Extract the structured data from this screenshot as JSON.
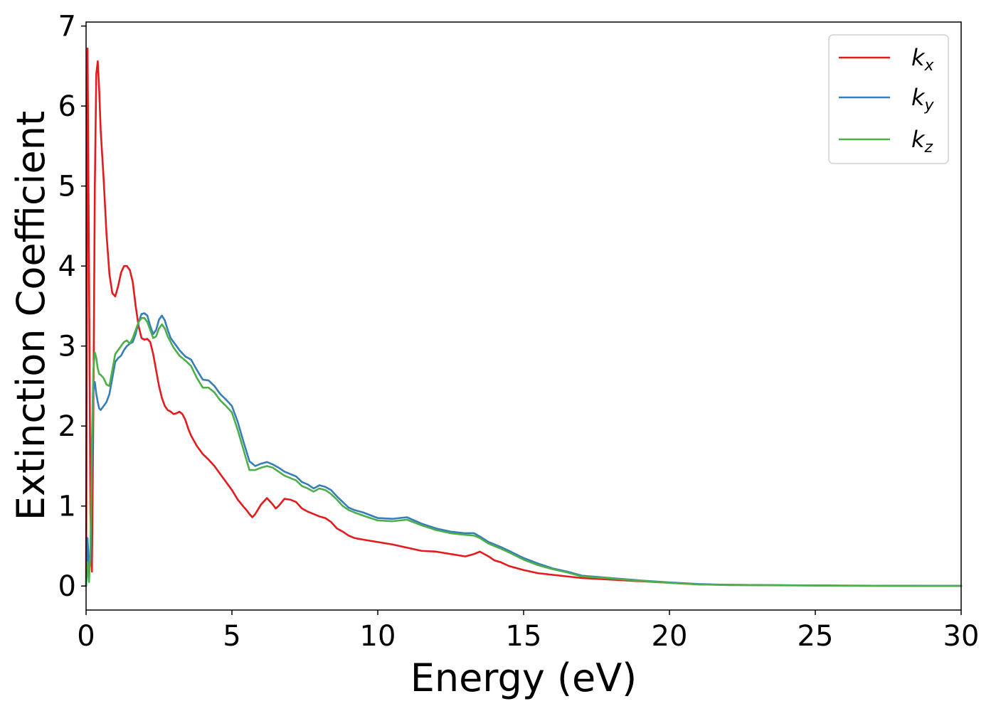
{
  "chart_data": {
    "type": "line",
    "xlabel": "Energy (eV)",
    "ylabel": "Extinction Coefficient",
    "xlim": [
      0,
      30
    ],
    "ylim": [
      -0.3,
      7.05
    ],
    "xticks": [
      0,
      5,
      10,
      15,
      20,
      25,
      30
    ],
    "yticks": [
      0,
      1,
      2,
      3,
      4,
      5,
      6,
      7
    ],
    "grid": false,
    "legend_position": "top-right",
    "series": [
      {
        "name": "k",
        "subscript": "x",
        "color": "#e41a1c",
        "x": [
          0,
          0.05,
          0.1,
          0.15,
          0.2,
          0.25,
          0.3,
          0.35,
          0.4,
          0.45,
          0.5,
          0.6,
          0.7,
          0.8,
          0.9,
          1.0,
          1.1,
          1.2,
          1.3,
          1.4,
          1.5,
          1.6,
          1.7,
          1.8,
          1.9,
          2.0,
          2.1,
          2.2,
          2.3,
          2.4,
          2.5,
          2.6,
          2.7,
          2.8,
          2.9,
          3.0,
          3.1,
          3.2,
          3.3,
          3.4,
          3.5,
          3.6,
          3.8,
          4.0,
          4.2,
          4.4,
          4.6,
          4.8,
          5.0,
          5.2,
          5.4,
          5.5,
          5.6,
          5.7,
          5.8,
          6.0,
          6.2,
          6.4,
          6.5,
          6.6,
          6.8,
          7.0,
          7.2,
          7.4,
          7.6,
          7.8,
          8.0,
          8.2,
          8.4,
          8.6,
          8.8,
          9.0,
          9.2,
          9.5,
          10.0,
          10.5,
          11.0,
          11.5,
          12.0,
          12.5,
          13.0,
          13.3,
          13.5,
          13.8,
          14.0,
          14.2,
          14.5,
          15.0,
          15.5,
          16.0,
          16.5,
          17.0,
          18.0,
          19.0,
          20.0,
          21.0,
          22.0,
          24.0,
          26.0,
          28.0,
          30.0
        ],
        "values": [
          0.0,
          6.72,
          4.0,
          0.9,
          0.18,
          2.2,
          5.0,
          6.4,
          6.56,
          6.2,
          5.7,
          5.1,
          4.4,
          3.9,
          3.66,
          3.62,
          3.75,
          3.92,
          4.0,
          4.0,
          3.95,
          3.8,
          3.5,
          3.25,
          3.1,
          3.08,
          3.09,
          3.05,
          2.9,
          2.7,
          2.5,
          2.35,
          2.25,
          2.2,
          2.18,
          2.15,
          2.16,
          2.18,
          2.15,
          2.08,
          1.97,
          1.88,
          1.75,
          1.65,
          1.58,
          1.5,
          1.4,
          1.3,
          1.2,
          1.08,
          0.99,
          0.95,
          0.9,
          0.86,
          0.9,
          1.02,
          1.1,
          1.02,
          0.97,
          1.0,
          1.09,
          1.08,
          1.05,
          0.97,
          0.93,
          0.9,
          0.87,
          0.85,
          0.8,
          0.72,
          0.68,
          0.63,
          0.6,
          0.58,
          0.55,
          0.52,
          0.48,
          0.44,
          0.43,
          0.4,
          0.37,
          0.4,
          0.43,
          0.37,
          0.32,
          0.3,
          0.25,
          0.2,
          0.16,
          0.14,
          0.12,
          0.1,
          0.08,
          0.06,
          0.04,
          0.02,
          0.015,
          0.01,
          0.005,
          0.003,
          0.002
        ]
      },
      {
        "name": "k",
        "subscript": "y",
        "color": "#377eb8",
        "x": [
          0,
          0.05,
          0.1,
          0.15,
          0.2,
          0.25,
          0.3,
          0.35,
          0.4,
          0.45,
          0.5,
          0.6,
          0.7,
          0.8,
          0.9,
          1.0,
          1.1,
          1.2,
          1.3,
          1.4,
          1.5,
          1.6,
          1.7,
          1.8,
          1.9,
          2.0,
          2.1,
          2.2,
          2.3,
          2.4,
          2.5,
          2.6,
          2.7,
          2.8,
          2.9,
          3.0,
          3.2,
          3.4,
          3.6,
          3.8,
          4.0,
          4.2,
          4.4,
          4.6,
          4.8,
          5.0,
          5.2,
          5.4,
          5.6,
          5.8,
          6.0,
          6.2,
          6.4,
          6.6,
          6.8,
          7.0,
          7.2,
          7.4,
          7.6,
          7.8,
          8.0,
          8.2,
          8.4,
          8.6,
          8.8,
          9.0,
          9.2,
          9.5,
          10.0,
          10.5,
          11.0,
          11.5,
          12.0,
          12.5,
          13.0,
          13.3,
          13.5,
          13.8,
          14.0,
          14.2,
          14.5,
          15.0,
          15.5,
          16.0,
          16.5,
          17.0,
          18.0,
          19.0,
          20.0,
          21.0,
          22.0,
          24.0,
          26.0,
          28.0,
          30.0
        ],
        "values": [
          0.0,
          0.6,
          0.2,
          0.3,
          1.5,
          2.45,
          2.55,
          2.4,
          2.3,
          2.22,
          2.2,
          2.25,
          2.3,
          2.4,
          2.6,
          2.8,
          2.85,
          2.88,
          2.95,
          3.0,
          3.03,
          3.05,
          3.15,
          3.3,
          3.4,
          3.41,
          3.38,
          3.25,
          3.15,
          3.2,
          3.33,
          3.38,
          3.32,
          3.2,
          3.1,
          3.05,
          2.95,
          2.87,
          2.83,
          2.7,
          2.58,
          2.57,
          2.5,
          2.4,
          2.33,
          2.25,
          2.05,
          1.8,
          1.56,
          1.5,
          1.53,
          1.55,
          1.52,
          1.48,
          1.43,
          1.4,
          1.37,
          1.3,
          1.27,
          1.22,
          1.26,
          1.24,
          1.2,
          1.12,
          1.05,
          0.98,
          0.95,
          0.92,
          0.85,
          0.84,
          0.86,
          0.78,
          0.72,
          0.68,
          0.66,
          0.66,
          0.62,
          0.55,
          0.52,
          0.49,
          0.44,
          0.35,
          0.28,
          0.22,
          0.18,
          0.13,
          0.1,
          0.07,
          0.045,
          0.025,
          0.015,
          0.01,
          0.005,
          0.003,
          0.002
        ]
      },
      {
        "name": "k",
        "subscript": "z",
        "color": "#4daf4a",
        "x": [
          0,
          0.05,
          0.1,
          0.15,
          0.2,
          0.25,
          0.3,
          0.35,
          0.4,
          0.45,
          0.5,
          0.6,
          0.7,
          0.8,
          0.9,
          1.0,
          1.1,
          1.2,
          1.3,
          1.4,
          1.5,
          1.6,
          1.7,
          1.8,
          1.9,
          2.0,
          2.1,
          2.2,
          2.3,
          2.4,
          2.5,
          2.6,
          2.7,
          2.8,
          2.9,
          3.0,
          3.2,
          3.4,
          3.6,
          3.8,
          4.0,
          4.2,
          4.4,
          4.6,
          4.8,
          5.0,
          5.2,
          5.4,
          5.6,
          5.8,
          6.0,
          6.2,
          6.4,
          6.6,
          6.8,
          7.0,
          7.2,
          7.4,
          7.6,
          7.8,
          8.0,
          8.2,
          8.4,
          8.6,
          8.8,
          9.0,
          9.2,
          9.5,
          10.0,
          10.5,
          11.0,
          11.5,
          12.0,
          12.5,
          13.0,
          13.3,
          13.5,
          13.8,
          14.0,
          14.2,
          14.5,
          15.0,
          15.5,
          16.0,
          16.5,
          17.0,
          18.0,
          19.0,
          20.0,
          21.0,
          22.0,
          24.0,
          26.0,
          28.0,
          30.0
        ],
        "values": [
          0.0,
          0.3,
          0.05,
          0.5,
          1.8,
          2.7,
          2.92,
          2.85,
          2.72,
          2.65,
          2.64,
          2.6,
          2.52,
          2.5,
          2.7,
          2.9,
          2.95,
          3.0,
          3.05,
          3.07,
          3.03,
          3.1,
          3.2,
          3.3,
          3.35,
          3.35,
          3.3,
          3.2,
          3.1,
          3.12,
          3.22,
          3.27,
          3.22,
          3.12,
          3.05,
          2.98,
          2.88,
          2.82,
          2.75,
          2.6,
          2.48,
          2.48,
          2.42,
          2.32,
          2.25,
          2.17,
          1.95,
          1.7,
          1.45,
          1.45,
          1.48,
          1.5,
          1.48,
          1.43,
          1.38,
          1.35,
          1.32,
          1.25,
          1.22,
          1.18,
          1.22,
          1.2,
          1.15,
          1.08,
          1.0,
          0.95,
          0.92,
          0.88,
          0.82,
          0.81,
          0.83,
          0.76,
          0.7,
          0.66,
          0.64,
          0.63,
          0.6,
          0.53,
          0.5,
          0.47,
          0.42,
          0.33,
          0.26,
          0.21,
          0.17,
          0.12,
          0.095,
          0.065,
          0.04,
          0.02,
          0.012,
          0.008,
          0.004,
          0.002,
          0.001
        ]
      }
    ]
  }
}
